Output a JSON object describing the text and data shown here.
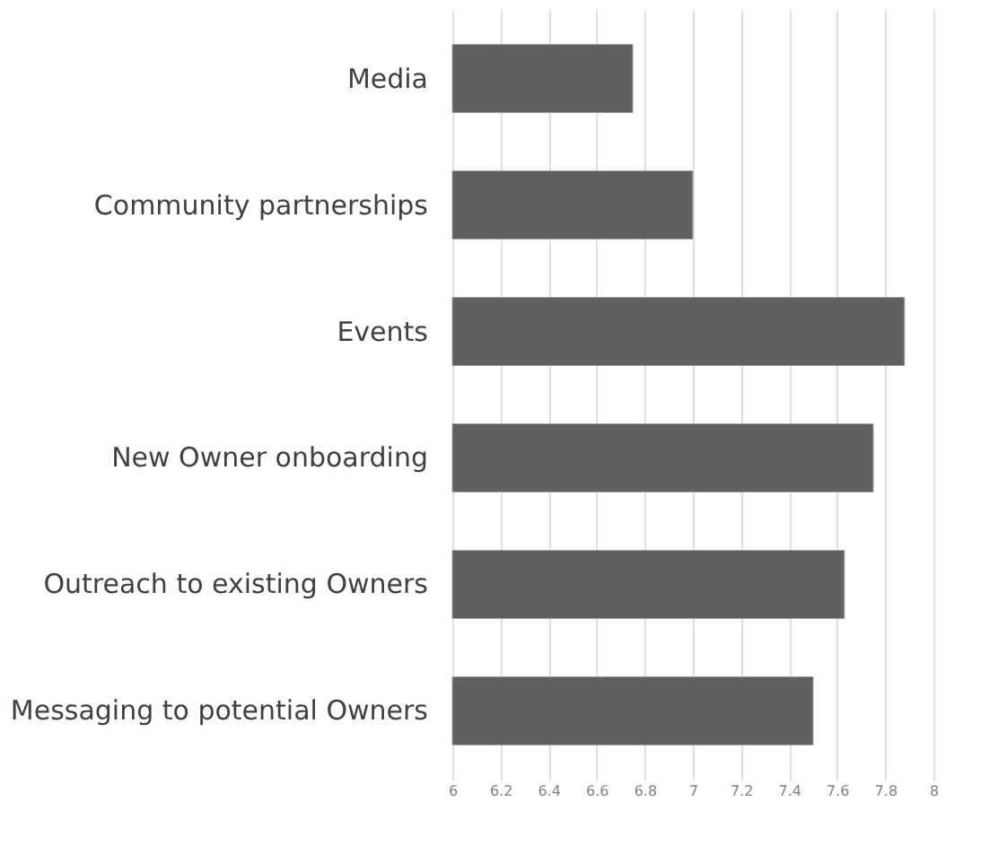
{
  "chart_data": {
    "type": "bar",
    "orientation": "horizontal",
    "categories": [
      "Media",
      "Community partnerships",
      "Events",
      "New Owner onboarding",
      "Outreach to existing Owners",
      "Messaging to potential Owners"
    ],
    "values": [
      6.75,
      7.0,
      7.88,
      7.75,
      7.63,
      7.5
    ],
    "color": "#606060",
    "xlim": [
      6,
      8
    ],
    "xticks": [
      6,
      6.2,
      6.4,
      6.6,
      6.8,
      7,
      7.2,
      7.4,
      7.6,
      7.8,
      8
    ],
    "grid": "x"
  }
}
